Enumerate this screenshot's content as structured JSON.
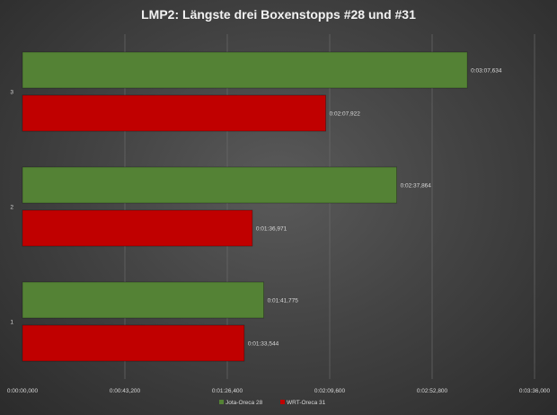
{
  "chart_data": {
    "type": "bar",
    "orientation": "horizontal",
    "title": "LMP2: Längste drei Boxenstopps #28 und #31",
    "categories": [
      "1",
      "2",
      "3"
    ],
    "series": [
      {
        "name": "Jota-Oreca 28",
        "color": "#548235",
        "values": [
          "0:01:41,775",
          "0:02:37,864",
          "0:03:07,634"
        ]
      },
      {
        "name": "WRT-Oreca 31",
        "color": "#c00000",
        "values": [
          "0:01:33,544",
          "0:01:36,971",
          "0:02:07,922"
        ]
      }
    ],
    "x_ticks": [
      "0:00:00,000",
      "0:00:43,200",
      "0:01:26,400",
      "0:02:09,600",
      "0:02:52,800",
      "0:03:36,000"
    ],
    "xlim": [
      "0:00:00,000",
      "0:03:36,000"
    ],
    "grid": true,
    "legend_position": "bottom"
  }
}
